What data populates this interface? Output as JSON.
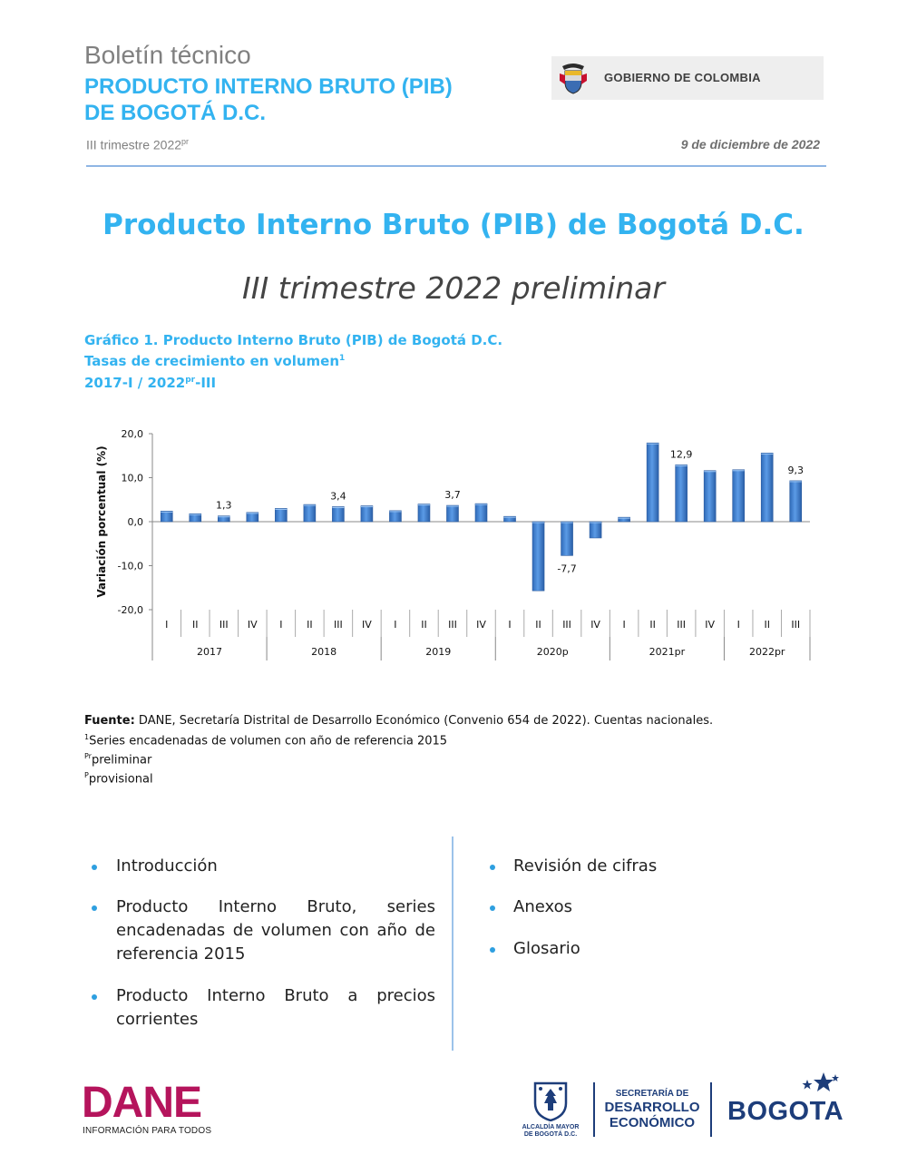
{
  "header": {
    "kicker": "Boletín técnico",
    "title_line1": "PRODUCTO INTERNO BRUTO (PIB)",
    "title_line2": "DE BOGOTÁ D.C.",
    "period": "III trimestre 2022",
    "period_sup": "pr",
    "date": "9 de diciembre de 2022",
    "gov_label": "GOBIERNO DE COLOMBIA"
  },
  "main": {
    "title": "Producto Interno Bruto (PIB) de Bogotá D.C.",
    "subtitle": "III trimestre 2022 preliminar"
  },
  "figure": {
    "caption_line1": "Gráfico 1. Producto Interno Bruto (PIB) de Bogotá D.C.",
    "caption_line2": "Tasas de crecimiento en volumen",
    "caption_line2_sup": "1",
    "caption_line3_a": "2017-I / 2022",
    "caption_line3_sup": "pr",
    "caption_line3_b": "-III"
  },
  "chart_data": {
    "type": "bar",
    "title": "",
    "ylabel": "Variación porcentual (%)",
    "xlabel": "",
    "ylim": [
      -20,
      20
    ],
    "yticks": [
      "20,0",
      "10,0",
      "0,0",
      "-10,0",
      "-20,0"
    ],
    "yticks_values": [
      20,
      10,
      0,
      -10,
      -20
    ],
    "quarter_labels": [
      "I",
      "II",
      "III",
      "IV",
      "I",
      "II",
      "III",
      "IV",
      "I",
      "II",
      "III",
      "IV",
      "I",
      "II",
      "III",
      "IV",
      "I",
      "II",
      "III",
      "IV",
      "I",
      "II",
      "III"
    ],
    "year_groups": [
      {
        "label": "2017",
        "count": 4
      },
      {
        "label": "2018",
        "count": 4
      },
      {
        "label": "2019",
        "count": 4
      },
      {
        "label": "2020p",
        "count": 4
      },
      {
        "label": "2021pr",
        "count": 4
      },
      {
        "label": "2022pr",
        "count": 3
      }
    ],
    "values": [
      2.4,
      1.8,
      1.3,
      2.1,
      3.0,
      3.9,
      3.4,
      3.6,
      2.5,
      4.0,
      3.7,
      4.1,
      1.2,
      -15.7,
      -7.7,
      -3.7,
      1.0,
      17.9,
      12.9,
      11.6,
      11.8,
      15.6,
      9.3
    ],
    "data_labels": [
      {
        "index": 2,
        "text": "1,3"
      },
      {
        "index": 6,
        "text": "3,4"
      },
      {
        "index": 10,
        "text": "3,7"
      },
      {
        "index": 14,
        "text": "-7,7"
      },
      {
        "index": 18,
        "text": "12,9"
      },
      {
        "index": 22,
        "text": "9,3"
      }
    ],
    "bar_color": "#3f7fcf",
    "grid": false
  },
  "source": {
    "fuente_label": "Fuente:",
    "fuente_text": " DANE, Secretaría Distrital de Desarrollo Económico (Convenio 654 de 2022). Cuentas nacionales.",
    "note1_sup": "1",
    "note1_text": "Series encadenadas de volumen con año de referencia 2015",
    "note2_sup": "Pr",
    "note2_text": "preliminar",
    "note3_sup": "P",
    "note3_text": "provisional"
  },
  "contents": {
    "left": [
      "Introducción",
      "Producto Interno Bruto, series encadenadas de volumen con año de referencia 2015",
      "Producto Interno Bruto a precios corrientes"
    ],
    "right": [
      "Revisión de cifras",
      "Anexos",
      "Glosario"
    ]
  },
  "footer": {
    "dane_word": "DANE",
    "dane_tagline": "INFORMACIÓN PARA TODOS",
    "alcaldia": "ALCALDÍA MAYOR DE BOGOTÁ D.C.",
    "sde_line1": "SECRETARÍA DE",
    "sde_line2": "DESARROLLO",
    "sde_line3": "ECONÓMICO",
    "bogota": "BOGOTA"
  },
  "colors": {
    "accent": "#33b3f0",
    "dane": "#b5145c",
    "navy": "#1d3d7a",
    "bullet": "#2e9fe0"
  }
}
